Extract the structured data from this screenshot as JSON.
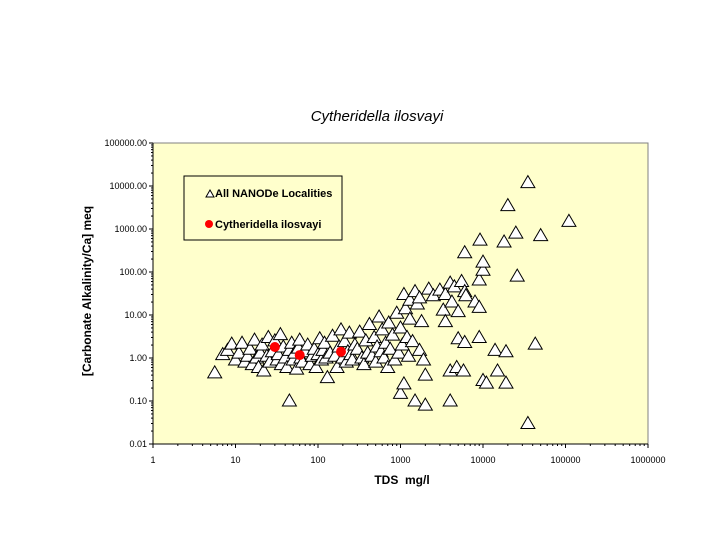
{
  "chart_data": {
    "type": "scatter",
    "title": "Cytheridella ilosvayi",
    "xlabel": "TDS  mg/l",
    "ylabel": "[Carbonate Alkalinity/Ca] meq",
    "xscale": "log",
    "yscale": "log",
    "xlim": [
      1,
      1000000
    ],
    "ylim": [
      0.01,
      100000
    ],
    "xticks": [
      1,
      10,
      100,
      1000,
      10000,
      100000,
      1000000
    ],
    "xtick_labels": [
      "1",
      "10",
      "100",
      "1000",
      "10000",
      "100000",
      "1000000"
    ],
    "yticks": [
      0.01,
      0.1,
      1,
      10,
      100,
      1000,
      10000,
      100000
    ],
    "ytick_labels": [
      "0.01",
      "0.10",
      "1.00",
      "10.00",
      "100.00",
      "1000.00",
      "10000.00",
      "100000.00"
    ],
    "grid": false,
    "legend_position": "top-left",
    "plot_background": "#FFFFCC",
    "series": [
      {
        "name": "All NANODe Localities",
        "marker": "open-triangle",
        "color": "#000000",
        "points": [
          [
            5.6,
            0.45
          ],
          [
            7,
            1.2
          ],
          [
            8,
            1.5
          ],
          [
            9,
            2.1
          ],
          [
            10,
            0.9
          ],
          [
            11,
            1.3
          ],
          [
            12,
            2.2
          ],
          [
            13,
            0.8
          ],
          [
            14,
            1.1
          ],
          [
            15,
            1.6
          ],
          [
            16,
            0.7
          ],
          [
            17,
            2.6
          ],
          [
            18,
            1.0
          ],
          [
            19,
            0.6
          ],
          [
            20,
            1.3
          ],
          [
            21,
            2.0
          ],
          [
            22,
            0.5
          ],
          [
            24,
            1.1
          ],
          [
            25,
            3.0
          ],
          [
            26,
            0.8
          ],
          [
            28,
            1.4
          ],
          [
            30,
            2.5
          ],
          [
            32,
            0.9
          ],
          [
            33,
            1.2
          ],
          [
            35,
            3.5
          ],
          [
            36,
            0.7
          ],
          [
            38,
            1.8
          ],
          [
            40,
            1.0
          ],
          [
            42,
            0.6
          ],
          [
            45,
            0.1
          ],
          [
            45,
            1.5
          ],
          [
            48,
            2.2
          ],
          [
            50,
            0.9
          ],
          [
            52,
            1.3
          ],
          [
            55,
            0.55
          ],
          [
            58,
            1.7
          ],
          [
            60,
            2.6
          ],
          [
            62,
            1.0
          ],
          [
            65,
            0.8
          ],
          [
            70,
            1.4
          ],
          [
            75,
            2.0
          ],
          [
            80,
            0.7
          ],
          [
            85,
            1.1
          ],
          [
            90,
            1.6
          ],
          [
            95,
            0.6
          ],
          [
            100,
            1.2
          ],
          [
            105,
            2.8
          ],
          [
            110,
            0.9
          ],
          [
            115,
            1.5
          ],
          [
            120,
            2.2
          ],
          [
            125,
            1.0
          ],
          [
            130,
            0.35
          ],
          [
            140,
            1.3
          ],
          [
            150,
            3.2
          ],
          [
            160,
            1.1
          ],
          [
            170,
            0.6
          ],
          [
            180,
            1.8
          ],
          [
            190,
            4.5
          ],
          [
            200,
            1.0
          ],
          [
            210,
            2.4
          ],
          [
            220,
            0.8
          ],
          [
            230,
            1.4
          ],
          [
            240,
            3.8
          ],
          [
            250,
            1.2
          ],
          [
            260,
            0.9
          ],
          [
            280,
            2.0
          ],
          [
            300,
            1.6
          ],
          [
            320,
            4.0
          ],
          [
            340,
            1.0
          ],
          [
            360,
            0.7
          ],
          [
            380,
            2.5
          ],
          [
            400,
            1.3
          ],
          [
            420,
            6.0
          ],
          [
            450,
            1.1
          ],
          [
            480,
            3.0
          ],
          [
            500,
            0.8
          ],
          [
            520,
            1.8
          ],
          [
            550,
            9.0
          ],
          [
            580,
            1.4
          ],
          [
            600,
            4.5
          ],
          [
            630,
            1.0
          ],
          [
            660,
            2.2
          ],
          [
            700,
            0.6
          ],
          [
            720,
            6.5
          ],
          [
            750,
            1.6
          ],
          [
            800,
            3.4
          ],
          [
            850,
            0.9
          ],
          [
            900,
            11
          ],
          [
            950,
            1.3
          ],
          [
            1000,
            5.0
          ],
          [
            1000,
            0.15
          ],
          [
            1050,
            2.0
          ],
          [
            1100,
            0.25
          ],
          [
            1100,
            30
          ],
          [
            1150,
            14
          ],
          [
            1200,
            3.0
          ],
          [
            1250,
            1.1
          ],
          [
            1300,
            8.0
          ],
          [
            1300,
            22
          ],
          [
            1400,
            2.4
          ],
          [
            1500,
            0.1
          ],
          [
            1500,
            35
          ],
          [
            1600,
            18
          ],
          [
            1700,
            1.5
          ],
          [
            1700,
            25
          ],
          [
            1800,
            7.0
          ],
          [
            1900,
            0.9
          ],
          [
            2000,
            0.08
          ],
          [
            2000,
            0.4
          ],
          [
            2200,
            40
          ],
          [
            2500,
            28
          ],
          [
            3000,
            38
          ],
          [
            3300,
            13
          ],
          [
            3500,
            7
          ],
          [
            3500,
            30
          ],
          [
            4000,
            55
          ],
          [
            4000,
            0.1
          ],
          [
            4000,
            0.5
          ],
          [
            4200,
            20
          ],
          [
            4500,
            45
          ],
          [
            4800,
            0.6
          ],
          [
            5000,
            2.8
          ],
          [
            5000,
            12
          ],
          [
            5500,
            60
          ],
          [
            5800,
            0.5
          ],
          [
            6000,
            2.3
          ],
          [
            6000,
            35
          ],
          [
            6000,
            280
          ],
          [
            6200,
            28
          ],
          [
            8000,
            20
          ],
          [
            9000,
            3
          ],
          [
            9000,
            15
          ],
          [
            9000,
            65
          ],
          [
            9200,
            550
          ],
          [
            10000,
            0.3
          ],
          [
            10000,
            110
          ],
          [
            10000,
            170
          ],
          [
            11000,
            0.26
          ],
          [
            14000,
            1.5
          ],
          [
            15000,
            0.5
          ],
          [
            18000,
            500
          ],
          [
            19000,
            0.26
          ],
          [
            19000,
            1.4
          ],
          [
            20000,
            3500
          ],
          [
            25000,
            800
          ],
          [
            26000,
            80
          ],
          [
            35000,
            12000
          ],
          [
            35000,
            0.03
          ],
          [
            43000,
            2.1
          ],
          [
            50000,
            700
          ],
          [
            110000,
            1500
          ]
        ]
      },
      {
        "name": "Cytheridella ilosvayi",
        "marker": "filled-circle",
        "color": "#FF0000",
        "points": [
          [
            30,
            1.8
          ],
          [
            60,
            1.17
          ],
          [
            190,
            1.4
          ]
        ]
      }
    ]
  }
}
